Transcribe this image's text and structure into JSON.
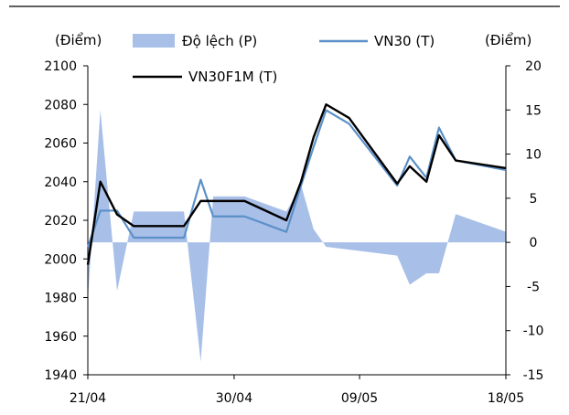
{
  "chart_data": {
    "type": "line",
    "left_axis_unit": "(Điểm)",
    "right_axis_unit": "(Điểm)",
    "left_axis": {
      "min": 1940,
      "max": 2100,
      "step": 20
    },
    "right_axis": {
      "min": -15,
      "max": 20,
      "step": 5
    },
    "x_tick_labels": [
      {
        "label": "21/04",
        "at": 0
      },
      {
        "label": "30/04",
        "at": 7
      },
      {
        "label": "09/05",
        "at": 13
      },
      {
        "label": "18/05",
        "at": 20
      }
    ],
    "x_index_range": [
      0,
      20
    ],
    "legend": [
      {
        "key": "deviation",
        "label": "Độ lệch (P)"
      },
      {
        "key": "vn30",
        "label": "VN30 (T)"
      },
      {
        "key": "vn30f1m",
        "label": "VN30F1M (T)"
      }
    ],
    "colors": {
      "deviation": "#a8bfe8",
      "vn30": "#5b90c8",
      "vn30f1m": "#000000"
    },
    "series": [
      {
        "name": "Độ lệch (P)",
        "key": "deviation",
        "axis": "right",
        "kind": "area",
        "points": [
          [
            0,
            -6.5
          ],
          [
            0.6,
            15
          ],
          [
            1.4,
            -5.5
          ],
          [
            2.2,
            3.5
          ],
          [
            3,
            3.5
          ],
          [
            4,
            3.5
          ],
          [
            4.6,
            3.5
          ],
          [
            5.4,
            -13.5
          ],
          [
            6,
            5.2
          ],
          [
            7.5,
            5.2
          ],
          [
            9.5,
            3.5
          ],
          [
            10.2,
            6.5
          ],
          [
            10.8,
            1.5
          ],
          [
            11.4,
            -0.5
          ],
          [
            14.8,
            -1.5
          ],
          [
            15.4,
            -4.8
          ],
          [
            16.2,
            -3.5
          ],
          [
            16.8,
            -3.5
          ],
          [
            17.6,
            3.2
          ],
          [
            20,
            1.2
          ]
        ]
      },
      {
        "name": "VN30 (T)",
        "key": "vn30",
        "axis": "left",
        "kind": "line",
        "points": [
          [
            0,
            2006
          ],
          [
            0.6,
            2025
          ],
          [
            1.4,
            2025
          ],
          [
            2.2,
            2011
          ],
          [
            3,
            2011
          ],
          [
            4,
            2011
          ],
          [
            4.6,
            2011
          ],
          [
            5.4,
            2041
          ],
          [
            6,
            2022
          ],
          [
            7.5,
            2022
          ],
          [
            9.5,
            2014
          ],
          [
            10.2,
            2038
          ],
          [
            10.8,
            2058
          ],
          [
            11.4,
            2077
          ],
          [
            12.5,
            2070
          ],
          [
            14.8,
            2038
          ],
          [
            15.4,
            2053
          ],
          [
            16.2,
            2042
          ],
          [
            16.8,
            2068
          ],
          [
            17.6,
            2051
          ],
          [
            20,
            2046
          ]
        ]
      },
      {
        "name": "VN30F1M (T)",
        "key": "vn30f1m",
        "axis": "left",
        "kind": "line",
        "points": [
          [
            0,
            1997
          ],
          [
            0.6,
            2040
          ],
          [
            1.4,
            2023
          ],
          [
            2.2,
            2017
          ],
          [
            3,
            2017
          ],
          [
            4,
            2017
          ],
          [
            4.6,
            2017
          ],
          [
            5.4,
            2030
          ],
          [
            6,
            2030
          ],
          [
            7.5,
            2030
          ],
          [
            9.5,
            2020
          ],
          [
            10.2,
            2040
          ],
          [
            10.8,
            2063
          ],
          [
            11.4,
            2080
          ],
          [
            12.5,
            2073
          ],
          [
            14.8,
            2039
          ],
          [
            15.4,
            2048
          ],
          [
            16.2,
            2040
          ],
          [
            16.8,
            2064
          ],
          [
            17.6,
            2051
          ],
          [
            20,
            2047
          ]
        ]
      }
    ]
  }
}
